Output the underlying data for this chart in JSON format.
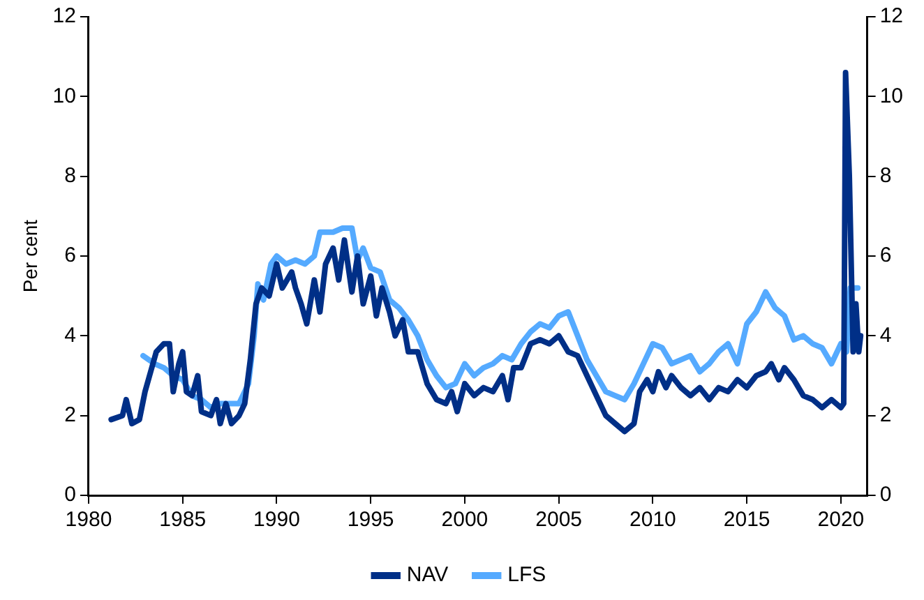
{
  "chart_data": {
    "type": "line",
    "ylabel": "Per cent",
    "xlim": [
      1980,
      2021.4
    ],
    "xticks": [
      1980,
      1985,
      1990,
      1995,
      2000,
      2005,
      2010,
      2015,
      2020
    ],
    "ylim": [
      0,
      12
    ],
    "yticks": [
      0,
      2,
      4,
      6,
      8,
      10,
      12
    ],
    "y2lim": [
      0,
      12
    ],
    "y2ticks": [
      0,
      2,
      4,
      6,
      8,
      10,
      12
    ],
    "grid": false,
    "legend": "bottom",
    "marker": "none",
    "line_style": "solid",
    "series": [
      {
        "name": "NAV",
        "color": "#002f87",
        "x": [
          1981.2,
          1981.8,
          1982.0,
          1982.3,
          1982.7,
          1983.0,
          1983.3,
          1983.6,
          1984.0,
          1984.3,
          1984.5,
          1984.8,
          1985.0,
          1985.2,
          1985.5,
          1985.8,
          1986.0,
          1986.5,
          1986.8,
          1987.0,
          1987.3,
          1987.6,
          1988.0,
          1988.3,
          1988.6,
          1988.9,
          1989.2,
          1989.6,
          1990.0,
          1990.3,
          1990.8,
          1991.0,
          1991.3,
          1991.6,
          1992.0,
          1992.3,
          1992.6,
          1993.0,
          1993.3,
          1993.6,
          1994.0,
          1994.3,
          1994.6,
          1995.0,
          1995.3,
          1995.6,
          1996.0,
          1996.3,
          1996.7,
          1997.0,
          1997.5,
          1998.0,
          1998.5,
          1999.0,
          1999.3,
          1999.6,
          2000.0,
          2000.5,
          2001.0,
          2001.5,
          2002.0,
          2002.3,
          2002.6,
          2003.0,
          2003.5,
          2004.0,
          2004.5,
          2005.0,
          2005.5,
          2006.0,
          2006.5,
          2007.0,
          2007.5,
          2008.0,
          2008.5,
          2009.0,
          2009.3,
          2009.7,
          2010.0,
          2010.3,
          2010.7,
          2011.0,
          2011.5,
          2012.0,
          2012.5,
          2013.0,
          2013.5,
          2014.0,
          2014.5,
          2015.0,
          2015.5,
          2016.0,
          2016.3,
          2016.7,
          2017.0,
          2017.5,
          2018.0,
          2018.5,
          2019.0,
          2019.5,
          2020.0,
          2020.15,
          2020.25,
          2020.45,
          2020.65,
          2020.8,
          2020.95,
          2021.05
        ],
        "values": [
          1.9,
          2.0,
          2.4,
          1.8,
          1.9,
          2.6,
          3.1,
          3.6,
          3.8,
          3.8,
          2.6,
          3.3,
          3.6,
          2.6,
          2.5,
          3.0,
          2.1,
          2.0,
          2.4,
          1.8,
          2.3,
          1.8,
          2.0,
          2.3,
          3.4,
          4.8,
          5.2,
          5.0,
          5.8,
          5.2,
          5.6,
          5.2,
          4.8,
          4.3,
          5.4,
          4.6,
          5.8,
          6.2,
          5.4,
          6.4,
          5.1,
          6.0,
          4.8,
          5.5,
          4.5,
          5.2,
          4.6,
          4.0,
          4.4,
          3.6,
          3.6,
          2.8,
          2.4,
          2.3,
          2.6,
          2.1,
          2.8,
          2.5,
          2.7,
          2.6,
          3.0,
          2.4,
          3.2,
          3.2,
          3.8,
          3.9,
          3.8,
          4.0,
          3.6,
          3.5,
          3.0,
          2.5,
          2.0,
          1.8,
          1.6,
          1.8,
          2.6,
          2.9,
          2.6,
          3.1,
          2.7,
          3.0,
          2.7,
          2.5,
          2.7,
          2.4,
          2.7,
          2.6,
          2.9,
          2.7,
          3.0,
          3.1,
          3.3,
          2.9,
          3.2,
          2.9,
          2.5,
          2.4,
          2.2,
          2.4,
          2.2,
          2.3,
          10.6,
          8.0,
          3.6,
          4.8,
          3.6,
          4.0
        ]
      },
      {
        "name": "LFS",
        "color": "#55aaff",
        "x": [
          1982.9,
          1983.5,
          1984.0,
          1984.5,
          1985.0,
          1985.5,
          1986.0,
          1986.5,
          1987.0,
          1987.5,
          1988.0,
          1988.5,
          1988.8,
          1989.0,
          1989.3,
          1989.7,
          1990.0,
          1990.5,
          1991.0,
          1991.5,
          1992.0,
          1992.3,
          1993.0,
          1993.5,
          1994.0,
          1994.3,
          1994.6,
          1995.0,
          1995.5,
          1996.0,
          1996.5,
          1997.0,
          1997.5,
          1998.0,
          1998.5,
          1999.0,
          1999.5,
          2000.0,
          2000.5,
          2001.0,
          2001.5,
          2002.0,
          2002.5,
          2003.0,
          2003.5,
          2004.0,
          2004.5,
          2005.0,
          2005.5,
          2006.0,
          2006.5,
          2007.0,
          2007.5,
          2008.0,
          2008.5,
          2009.0,
          2009.5,
          2010.0,
          2010.5,
          2011.0,
          2011.5,
          2012.0,
          2012.5,
          2013.0,
          2013.5,
          2014.0,
          2014.5,
          2015.0,
          2015.5,
          2016.0,
          2016.5,
          2017.0,
          2017.5,
          2018.0,
          2018.5,
          2019.0,
          2019.5,
          2020.0,
          2020.3,
          2020.5,
          2020.9
        ],
        "values": [
          3.5,
          3.3,
          3.2,
          3.0,
          2.9,
          2.5,
          2.4,
          2.2,
          2.3,
          2.3,
          2.3,
          2.8,
          4.0,
          5.3,
          4.9,
          5.8,
          6.0,
          5.8,
          5.9,
          5.8,
          6.0,
          6.6,
          6.6,
          6.7,
          6.7,
          5.9,
          6.2,
          5.7,
          5.6,
          4.9,
          4.7,
          4.4,
          4.0,
          3.4,
          3.0,
          2.7,
          2.8,
          3.3,
          3.0,
          3.2,
          3.3,
          3.5,
          3.4,
          3.8,
          4.1,
          4.3,
          4.2,
          4.5,
          4.6,
          4.0,
          3.4,
          3.0,
          2.6,
          2.5,
          2.4,
          2.8,
          3.3,
          3.8,
          3.7,
          3.3,
          3.4,
          3.5,
          3.1,
          3.3,
          3.6,
          3.8,
          3.3,
          4.3,
          4.6,
          5.1,
          4.7,
          4.5,
          3.9,
          4.0,
          3.8,
          3.7,
          3.3,
          3.8,
          3.6,
          5.2,
          5.2
        ]
      }
    ]
  }
}
